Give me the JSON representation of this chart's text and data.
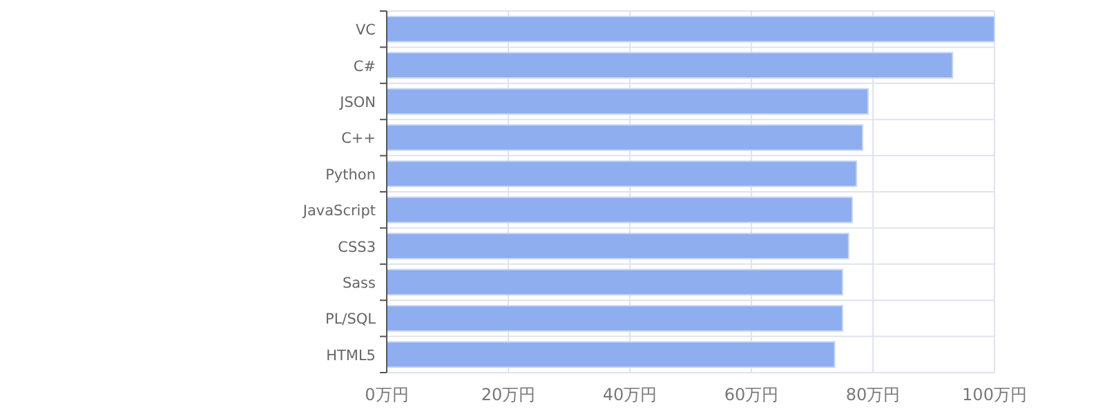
{
  "chart_data": {
    "type": "bar",
    "orientation": "horizontal",
    "categories": [
      "VC",
      "C#",
      "JSON",
      "C++",
      "Python",
      "JavaScript",
      "CSS3",
      "Sass",
      "PL/SQL",
      "HTML5"
    ],
    "values": [
      100,
      93.1,
      79.2,
      78.3,
      77.3,
      76.6,
      76.0,
      75.0,
      75.0,
      73.7
    ],
    "color": "#8eaef0",
    "xlim": [
      0,
      100
    ],
    "xticks": [
      {
        "value": 0,
        "label": "0万円"
      },
      {
        "value": 20,
        "label": "20万円"
      },
      {
        "value": 40,
        "label": "40万円"
      },
      {
        "value": 60,
        "label": "60万円"
      },
      {
        "value": 80,
        "label": "80万円"
      },
      {
        "value": 100,
        "label": "100万円"
      }
    ],
    "grid": true
  }
}
